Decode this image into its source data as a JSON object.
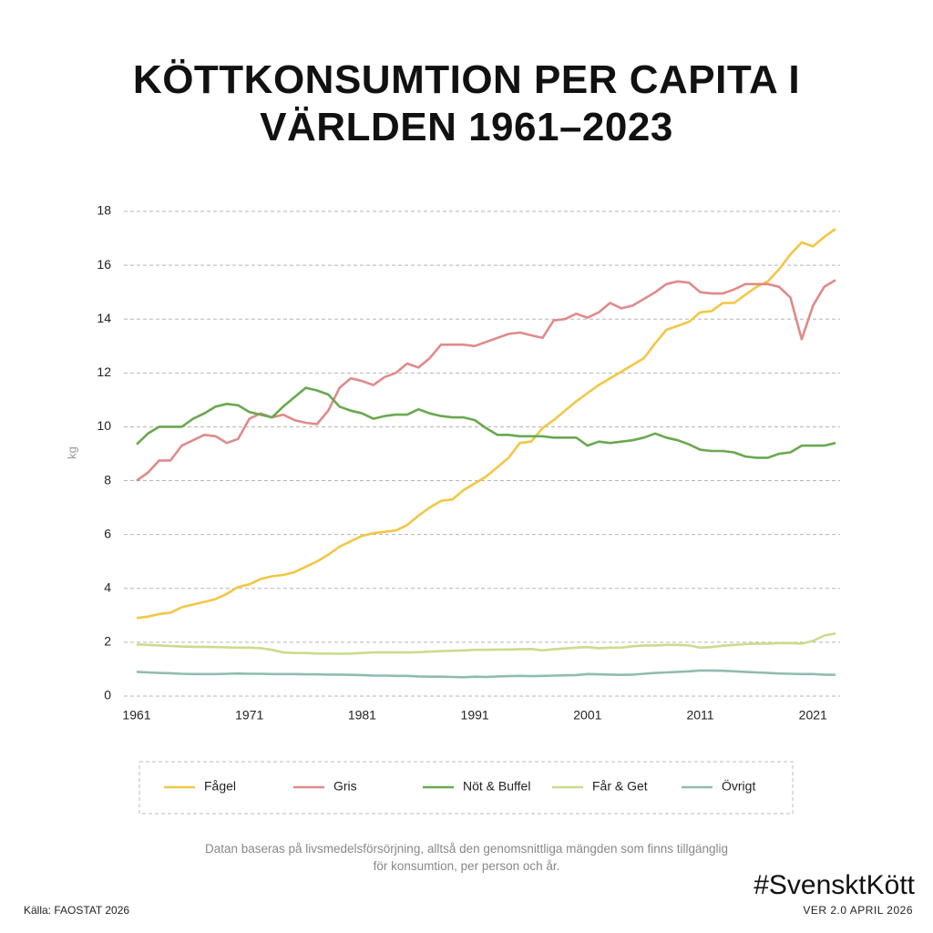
{
  "chart_data": {
    "type": "line",
    "title": "KÖTTKONSUMTION PER CAPITA I VÄRLDEN 1961–2023",
    "ylabel": "kg",
    "note": "Datan baseras på livsmedelsförsörjning, alltså den genomsnittliga mängden som finns tillgänglig för konsumtion, per person och år.",
    "source": "Källa: FAOSTAT 2026",
    "hashtag": "#SvensktKött",
    "version": "VER 2.0 APRIL 2026",
    "x": [
      1961,
      1962,
      1963,
      1964,
      1965,
      1966,
      1967,
      1968,
      1969,
      1970,
      1971,
      1972,
      1973,
      1974,
      1975,
      1976,
      1977,
      1978,
      1979,
      1980,
      1981,
      1982,
      1983,
      1984,
      1985,
      1986,
      1987,
      1988,
      1989,
      1990,
      1991,
      1992,
      1993,
      1994,
      1995,
      1996,
      1997,
      1998,
      1999,
      2000,
      2001,
      2002,
      2003,
      2004,
      2005,
      2006,
      2007,
      2008,
      2009,
      2010,
      2011,
      2012,
      2013,
      2014,
      2015,
      2016,
      2017,
      2018,
      2019,
      2020,
      2021,
      2022,
      2023
    ],
    "xlim": [
      1961,
      2023
    ],
    "xticks": [
      1961,
      1971,
      1981,
      1991,
      2001,
      2011,
      2021
    ],
    "ylim": [
      0,
      18
    ],
    "yticks": [
      0,
      2,
      4,
      6,
      8,
      10,
      12,
      14,
      16,
      18
    ],
    "grid": true,
    "series": [
      {
        "name": "Fågel",
        "color": "#f2c744",
        "values": [
          2.9,
          2.95,
          3.05,
          3.1,
          3.3,
          3.4,
          3.5,
          3.6,
          3.8,
          4.05,
          4.15,
          4.35,
          4.45,
          4.5,
          4.6,
          4.8,
          5.0,
          5.25,
          5.55,
          5.75,
          5.95,
          6.05,
          6.1,
          6.15,
          6.35,
          6.7,
          7.0,
          7.25,
          7.3,
          7.65,
          7.9,
          8.15,
          8.5,
          8.85,
          9.4,
          9.45,
          9.95,
          10.25,
          10.6,
          10.95,
          11.25,
          11.55,
          11.8,
          12.05,
          12.3,
          12.55,
          13.1,
          13.6,
          13.75,
          13.9,
          14.25,
          14.3,
          14.6,
          14.6,
          14.9,
          15.2,
          15.4,
          15.85,
          16.4,
          16.85,
          16.7,
          17.05,
          17.35
        ]
      },
      {
        "name": "Gris",
        "color": "#e08a8a",
        "values": [
          8.0,
          8.3,
          8.75,
          8.75,
          9.3,
          9.5,
          9.7,
          9.65,
          9.4,
          9.55,
          10.3,
          10.5,
          10.35,
          10.45,
          10.25,
          10.15,
          10.1,
          10.6,
          11.45,
          11.8,
          11.7,
          11.55,
          11.85,
          12.0,
          12.35,
          12.2,
          12.55,
          13.05,
          13.05,
          13.05,
          13.0,
          13.15,
          13.3,
          13.45,
          13.5,
          13.4,
          13.3,
          13.95,
          14.0,
          14.2,
          14.05,
          14.25,
          14.6,
          14.4,
          14.5,
          14.75,
          15.0,
          15.3,
          15.4,
          15.35,
          15.0,
          14.95,
          14.95,
          15.1,
          15.3,
          15.3,
          15.3,
          15.2,
          14.8,
          13.25,
          14.5,
          15.2,
          15.45
        ]
      },
      {
        "name": "Nöt & Buffel",
        "color": "#6aa84f",
        "values": [
          9.35,
          9.75,
          10.0,
          10.0,
          10.0,
          10.3,
          10.5,
          10.75,
          10.85,
          10.8,
          10.55,
          10.45,
          10.35,
          10.75,
          11.1,
          11.45,
          11.35,
          11.2,
          10.75,
          10.6,
          10.5,
          10.3,
          10.4,
          10.45,
          10.45,
          10.65,
          10.5,
          10.4,
          10.35,
          10.35,
          10.25,
          9.95,
          9.7,
          9.7,
          9.65,
          9.65,
          9.65,
          9.6,
          9.6,
          9.6,
          9.3,
          9.45,
          9.4,
          9.45,
          9.5,
          9.6,
          9.75,
          9.6,
          9.5,
          9.35,
          9.15,
          9.1,
          9.1,
          9.05,
          8.9,
          8.85,
          8.85,
          9.0,
          9.05,
          9.3,
          9.3,
          9.3,
          9.4
        ]
      },
      {
        "name": "Får & Get",
        "color": "#c9dc8c",
        "values": [
          1.92,
          1.9,
          1.88,
          1.86,
          1.84,
          1.83,
          1.83,
          1.82,
          1.81,
          1.8,
          1.8,
          1.78,
          1.72,
          1.62,
          1.6,
          1.6,
          1.58,
          1.58,
          1.57,
          1.58,
          1.6,
          1.62,
          1.62,
          1.62,
          1.62,
          1.63,
          1.65,
          1.67,
          1.68,
          1.7,
          1.72,
          1.72,
          1.73,
          1.73,
          1.74,
          1.75,
          1.7,
          1.74,
          1.77,
          1.8,
          1.82,
          1.78,
          1.8,
          1.8,
          1.85,
          1.88,
          1.88,
          1.9,
          1.9,
          1.88,
          1.8,
          1.82,
          1.87,
          1.9,
          1.93,
          1.95,
          1.95,
          1.97,
          1.97,
          1.95,
          2.05,
          2.25,
          2.32
        ]
      },
      {
        "name": "Övrigt",
        "color": "#8fbcb0",
        "values": [
          0.9,
          0.88,
          0.86,
          0.85,
          0.83,
          0.82,
          0.82,
          0.82,
          0.83,
          0.84,
          0.83,
          0.83,
          0.82,
          0.82,
          0.82,
          0.81,
          0.81,
          0.8,
          0.8,
          0.79,
          0.78,
          0.76,
          0.76,
          0.75,
          0.75,
          0.73,
          0.72,
          0.72,
          0.71,
          0.7,
          0.72,
          0.71,
          0.73,
          0.74,
          0.75,
          0.74,
          0.75,
          0.76,
          0.77,
          0.78,
          0.82,
          0.81,
          0.8,
          0.79,
          0.8,
          0.83,
          0.86,
          0.88,
          0.9,
          0.92,
          0.95,
          0.95,
          0.94,
          0.92,
          0.9,
          0.88,
          0.86,
          0.84,
          0.83,
          0.82,
          0.82,
          0.8,
          0.79
        ]
      }
    ]
  }
}
